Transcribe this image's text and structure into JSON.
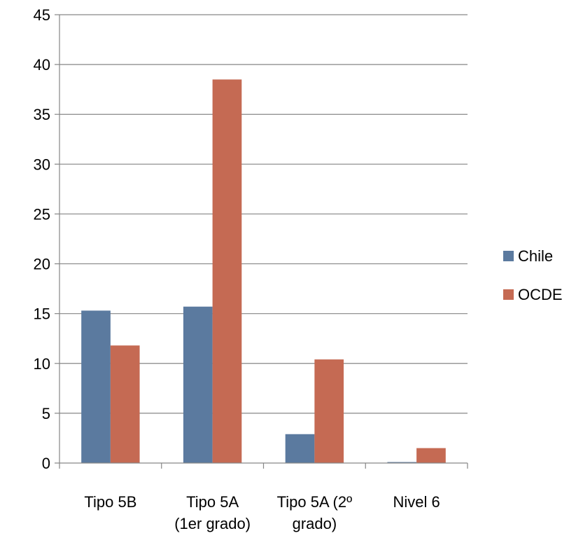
{
  "chart_data": {
    "type": "bar",
    "categories": [
      [
        "Tipo 5B"
      ],
      [
        "Tipo 5A",
        "(1er grado)"
      ],
      [
        "Tipo 5A (2º",
        "grado)"
      ],
      [
        "Nivel 6"
      ]
    ],
    "series": [
      {
        "name": "Chile",
        "color": "#5b7a9f",
        "values": [
          15.3,
          15.7,
          2.9,
          0.1
        ]
      },
      {
        "name": "OCDE",
        "color": "#c56a53",
        "values": [
          11.8,
          38.5,
          10.4,
          1.5
        ]
      }
    ],
    "ylim": [
      0,
      45
    ],
    "yticks": [
      0,
      5,
      10,
      15,
      20,
      25,
      30,
      35,
      40,
      45
    ],
    "grid": true,
    "legend_position": "right",
    "title": "",
    "xlabel": "",
    "ylabel": ""
  }
}
